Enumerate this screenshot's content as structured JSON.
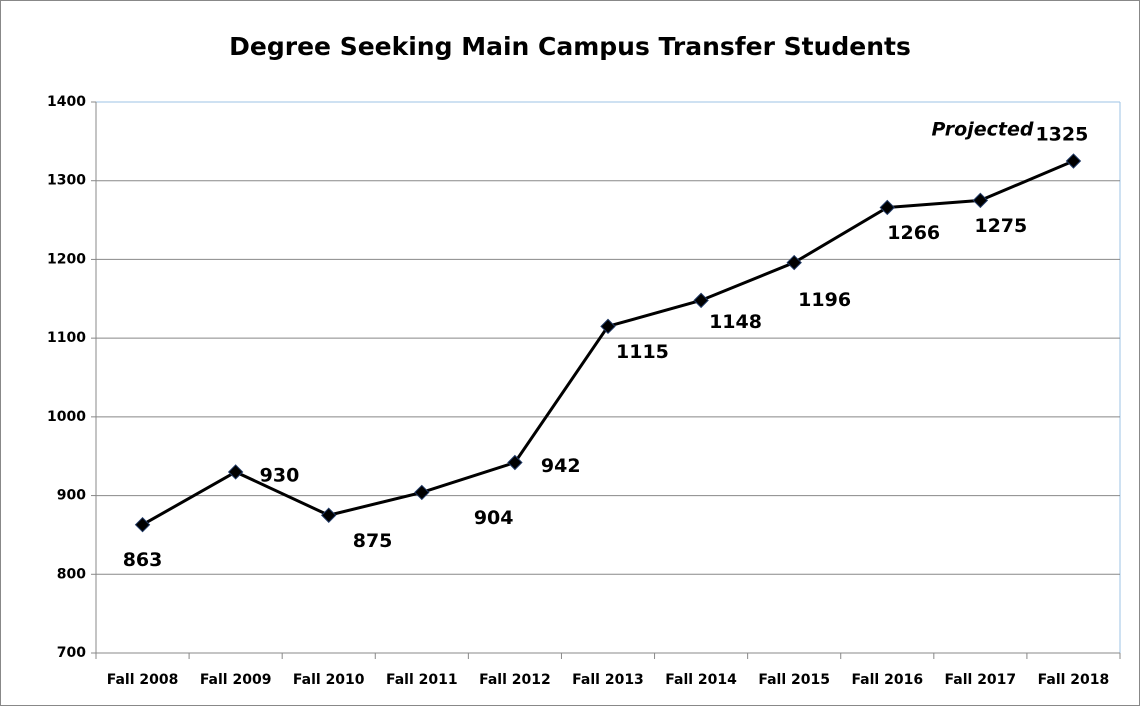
{
  "chart_data": {
    "type": "line",
    "title": "Degree Seeking Main Campus Transfer Students",
    "categories": [
      "Fall 2008",
      "Fall 2009",
      "Fall 2010",
      "Fall 2011",
      "Fall 2012",
      "Fall 2013",
      "Fall 2014",
      "Fall 2015",
      "Fall 2016",
      "Fall 2017",
      "Fall 2018"
    ],
    "values": [
      863,
      930,
      875,
      904,
      942,
      1115,
      1148,
      1196,
      1266,
      1275,
      1325
    ],
    "color": "#000000",
    "ylim": [
      700,
      1400
    ],
    "yticks": [
      700,
      800,
      900,
      1000,
      1100,
      1200,
      1300,
      1400
    ],
    "grid": true,
    "annotation": "Projected",
    "annotation_color": "#e00000"
  }
}
